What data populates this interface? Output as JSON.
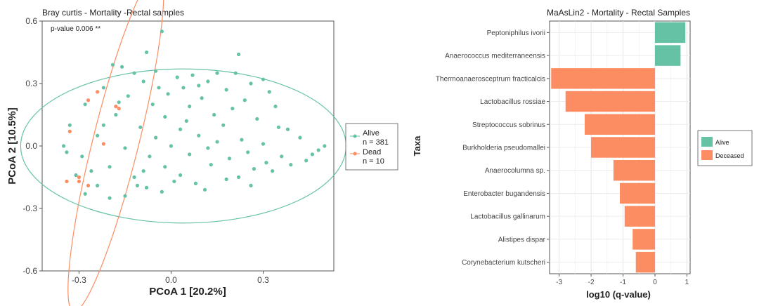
{
  "chart_data": [
    {
      "type": "scatter",
      "title": "Bray curtis - Mortality -Rectal samples",
      "annotation": "p-value 0.006 **",
      "xlabel": "PCoA 1 [20.2%]",
      "ylabel": "PCoA 2 [10.5%]",
      "xlim": [
        -0.42,
        0.53
      ],
      "ylim": [
        -0.6,
        0.6
      ],
      "x_ticks": [
        -0.3,
        0.0,
        0.3
      ],
      "x_tick_labels": [
        "-0.3",
        "0.0",
        "0.3"
      ],
      "y_ticks": [
        -0.6,
        -0.3,
        0.0,
        0.3,
        0.6
      ],
      "y_tick_labels": [
        "-0.6",
        "-0.3",
        "0.0",
        "0.3",
        "0.6"
      ],
      "grid": false,
      "legend_position": "right",
      "series": [
        {
          "name": "Alive",
          "count_label": "n = 381",
          "color": "#66c2a5",
          "ellipse": {
            "center": [
              0.04,
              0.0
            ],
            "semi_axes": [
              0.53,
              0.37
            ],
            "angle_deg": 0
          },
          "points": [
            [
              -0.03,
              0.55
            ],
            [
              -0.19,
              0.39
            ],
            [
              -0.16,
              0.38
            ],
            [
              -0.08,
              0.45
            ],
            [
              0.22,
              0.44
            ],
            [
              0.07,
              0.34
            ],
            [
              0.02,
              0.33
            ],
            [
              0.15,
              0.35
            ],
            [
              0.21,
              0.35
            ],
            [
              -0.12,
              0.35
            ],
            [
              -0.05,
              0.36
            ],
            [
              0.3,
              0.32
            ],
            [
              0.12,
              0.31
            ],
            [
              0.26,
              0.3
            ],
            [
              -0.22,
              0.28
            ],
            [
              -0.09,
              0.31
            ],
            [
              0.04,
              0.28
            ],
            [
              0.18,
              0.27
            ],
            [
              0.32,
              0.26
            ],
            [
              -0.14,
              0.24
            ],
            [
              -0.01,
              0.25
            ],
            [
              0.1,
              0.23
            ],
            [
              0.24,
              0.22
            ],
            [
              -0.28,
              0.2
            ],
            [
              -0.06,
              0.2
            ],
            [
              0.06,
              0.19
            ],
            [
              0.2,
              0.18
            ],
            [
              0.34,
              0.19
            ],
            [
              -0.18,
              0.15
            ],
            [
              -0.02,
              0.14
            ],
            [
              0.14,
              0.15
            ],
            [
              0.28,
              0.13
            ],
            [
              -0.33,
              0.1
            ],
            [
              -0.1,
              0.09
            ],
            [
              0.03,
              0.08
            ],
            [
              0.17,
              0.1
            ],
            [
              0.38,
              0.08
            ],
            [
              -0.24,
              0.05
            ],
            [
              -0.05,
              0.04
            ],
            [
              0.09,
              0.05
            ],
            [
              0.23,
              0.03
            ],
            [
              0.42,
              0.04
            ],
            [
              -0.35,
              0.0
            ],
            [
              -0.15,
              -0.01
            ],
            [
              0.0,
              0.0
            ],
            [
              0.12,
              -0.01
            ],
            [
              0.3,
              0.01
            ],
            [
              0.48,
              -0.02
            ],
            [
              -0.29,
              -0.05
            ],
            [
              -0.07,
              -0.05
            ],
            [
              0.06,
              -0.04
            ],
            [
              0.19,
              -0.06
            ],
            [
              0.36,
              -0.05
            ],
            [
              0.5,
              0.0
            ],
            [
              -0.2,
              -0.1
            ],
            [
              -0.02,
              -0.1
            ],
            [
              0.13,
              -0.09
            ],
            [
              0.27,
              -0.11
            ],
            [
              0.44,
              -0.07
            ],
            [
              -0.31,
              -0.14
            ],
            [
              -0.12,
              -0.15
            ],
            [
              0.03,
              -0.14
            ],
            [
              0.18,
              -0.16
            ],
            [
              0.33,
              -0.12
            ],
            [
              -0.24,
              -0.19
            ],
            [
              -0.08,
              -0.2
            ],
            [
              0.08,
              -0.18
            ],
            [
              0.22,
              -0.15
            ],
            [
              -0.28,
              -0.23
            ],
            [
              -0.15,
              -0.24
            ],
            [
              -0.03,
              -0.22
            ],
            [
              0.11,
              -0.21
            ],
            [
              -0.2,
              -0.25
            ],
            [
              -0.11,
              -0.19
            ],
            [
              0.26,
              -0.19
            ],
            [
              0.39,
              -0.09
            ],
            [
              -0.26,
              -0.12
            ],
            [
              0.05,
              0.12
            ],
            [
              0.35,
              0.09
            ],
            [
              -0.17,
              0.21
            ],
            [
              0.01,
              -0.17
            ],
            [
              0.15,
              0.02
            ],
            [
              -0.09,
              -0.12
            ],
            [
              0.46,
              -0.04
            ],
            [
              -0.34,
              -0.03
            ],
            [
              0.09,
              0.29
            ],
            [
              -0.04,
              0.28
            ],
            [
              0.25,
              -0.03
            ],
            [
              -0.22,
              0.1
            ],
            [
              0.31,
              -0.08
            ]
          ]
        },
        {
          "name": "Dead",
          "count_label": "n = 10",
          "color": "#fc8d62",
          "ellipse": {
            "center": [
              -0.18,
              0.02
            ],
            "semi_axes": [
              0.57,
              0.11
            ],
            "angle_deg": 76
          },
          "points": [
            [
              -0.24,
              0.26
            ],
            [
              -0.27,
              0.22
            ],
            [
              -0.18,
              0.19
            ],
            [
              -0.17,
              0.18
            ],
            [
              -0.33,
              0.07
            ],
            [
              -0.22,
              0.01
            ],
            [
              -0.3,
              -0.15
            ],
            [
              -0.34,
              -0.17
            ],
            [
              -0.27,
              -0.19
            ],
            [
              -0.3,
              -0.17
            ]
          ]
        }
      ]
    },
    {
      "type": "bar",
      "orientation": "horizontal",
      "title": "MaAsLin2 - Mortality - Rectal Samples",
      "xlabel": "log10 (q-value)",
      "ylabel": "Taxa",
      "xlim": [
        -3.3,
        1.1
      ],
      "x_ticks": [
        -3,
        -2,
        -1,
        0,
        1
      ],
      "x_tick_labels": [
        "-3",
        "-2",
        "-1",
        "0",
        "1"
      ],
      "grid": true,
      "legend_position": "right",
      "legend": [
        {
          "name": "Alive",
          "color": "#66c2a5"
        },
        {
          "name": "Deceased",
          "color": "#fc8d62"
        }
      ],
      "categories": [
        "Peptoniphilus ivorii",
        "Anaerococcus mediterraneensis",
        "Thermoanaerosceptrum fracticalcis",
        "Lactobacillus rossiae",
        "Streptococcus sobrinus",
        "Burkholderia pseudomallei",
        "Anaerocolumna sp.",
        "Enterobacter bugandensis",
        "Lactobacillus gallinarum",
        "Alistipes dispar",
        "Corynebacterium kutscheri"
      ],
      "values": [
        0.95,
        0.8,
        -3.25,
        -2.8,
        -2.2,
        -2.0,
        -1.3,
        -1.1,
        -0.95,
        -0.7,
        -0.6
      ],
      "groups": [
        "Alive",
        "Alive",
        "Deceased",
        "Deceased",
        "Deceased",
        "Deceased",
        "Deceased",
        "Deceased",
        "Deceased",
        "Deceased",
        "Deceased"
      ]
    }
  ]
}
